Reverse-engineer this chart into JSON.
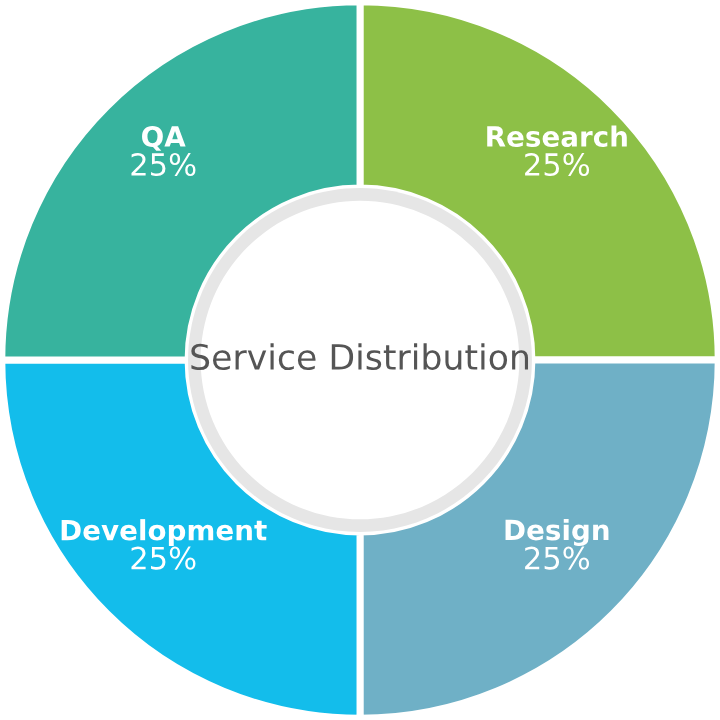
{
  "chart_data": {
    "type": "donut",
    "title": "Service Distribution",
    "categories": [
      "Research",
      "Design",
      "Development",
      "QA"
    ],
    "values": [
      25,
      25,
      25,
      25
    ],
    "value_labels": [
      "25%",
      "25%",
      "25%",
      "25%"
    ],
    "colors": [
      "#8dc047",
      "#6fb0c6",
      "#13bdeb",
      "#37b39e"
    ],
    "legend": false
  }
}
